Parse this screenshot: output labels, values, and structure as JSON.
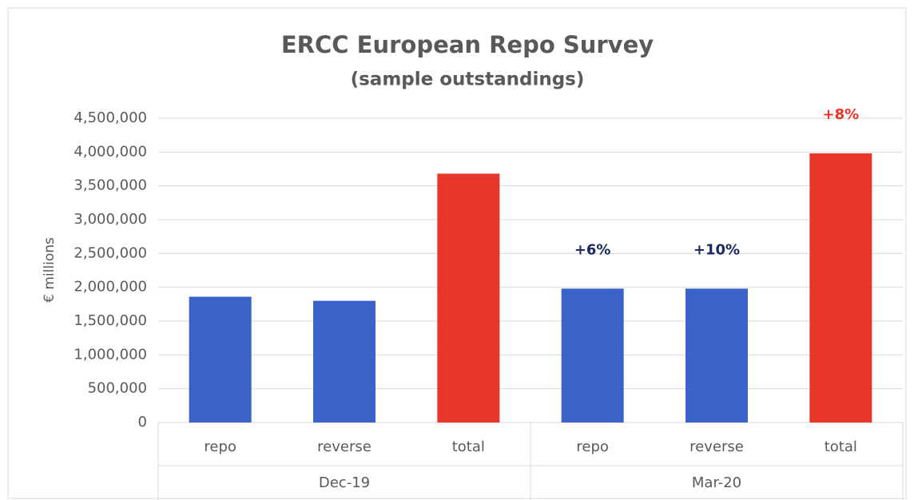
{
  "chart_data": {
    "type": "bar",
    "title": "ERCC European Repo Survey",
    "subtitle": "(sample outstandings)",
    "y_label": "€ millions",
    "groups": [
      {
        "name": "Dec-19",
        "categories": [
          "repo",
          "reverse",
          "total"
        ],
        "values": [
          1860000,
          1800000,
          3680000
        ],
        "colors": [
          "#3a62c8",
          "#3a62c8",
          "#e8352a"
        ],
        "annotations": [
          null,
          null,
          null
        ],
        "annotation_colors": [
          null,
          null,
          null
        ]
      },
      {
        "name": "Mar-20",
        "categories": [
          "repo",
          "reverse",
          "total"
        ],
        "values": [
          1980000,
          1980000,
          3980000
        ],
        "colors": [
          "#3a62c8",
          "#3a62c8",
          "#e8352a"
        ],
        "annotations": [
          "+6%",
          "+10%",
          "+8%"
        ],
        "annotation_colors": [
          "#1b2a63",
          "#1b2a63",
          "#e8352a"
        ]
      }
    ],
    "ylim": [
      0,
      4500000
    ],
    "yticks": [
      0,
      {
        "value": 500000,
        "label": "500,000"
      },
      {
        "value": 1000000,
        "label": "1,000,000"
      },
      {
        "value": 1500000,
        "label": "1,500,000"
      },
      {
        "value": 2000000,
        "label": "2,000,000"
      },
      {
        "value": 2500000,
        "label": "2,500,000"
      },
      {
        "value": 3000000,
        "label": "3,000,000"
      },
      {
        "value": 3500000,
        "label": "3,500,000"
      },
      {
        "value": 4000000,
        "label": "4,000,000"
      },
      {
        "value": 4500000,
        "label": "4,500,000"
      }
    ],
    "grid": true
  }
}
